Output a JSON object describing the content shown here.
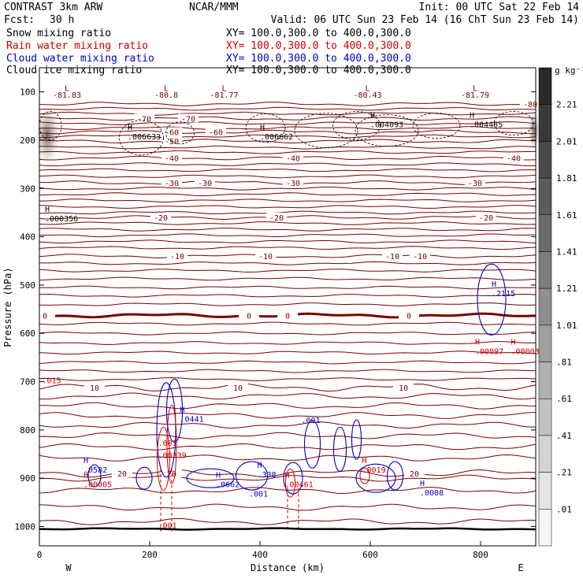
{
  "header": {
    "model": "CONTRAST  3km ARW",
    "org": "NCAR/MMM",
    "init": "Init: 00 UTC Sat 22 Feb 14",
    "fcst_label": "Fcst:",
    "fcst_value": "30 h",
    "valid": "Valid: 06 UTC Sun 23 Feb 14 (16 ChT Sun 23 Feb 14)",
    "fields": [
      {
        "name": "Snow mixing ratio",
        "xy": "XY= 100.0,300.0 to 400.0,300.0",
        "color": "#000000"
      },
      {
        "name": "Rain water mixing ratio",
        "xy": "XY= 100.0,300.0 to 400.0,300.0",
        "color": "#d00000"
      },
      {
        "name": "Cloud water mixing ratio",
        "xy": "XY= 100.0,300.0 to 400.0,300.0",
        "color": "#0000cc"
      },
      {
        "name": "Cloud ice mixing ratio",
        "xy": "XY= 100.0,300.0 to 400.0,300.0",
        "color": "#000000"
      }
    ]
  },
  "chart_data": {
    "type": "contour cross-section",
    "xlabel": "Distance (km)",
    "ylabel": "Pressure (hPa)",
    "xlim": [
      0,
      900
    ],
    "ylim": [
      1040,
      50
    ],
    "x_ticks": [
      0,
      200,
      400,
      600,
      800
    ],
    "y_ticks": [
      100,
      200,
      300,
      400,
      500,
      600,
      700,
      800,
      900,
      1000
    ],
    "x_end_labels": {
      "left": "W",
      "right": "E"
    },
    "colorbar": {
      "unit": "g kg⁻¹",
      "labels": [
        "2.21",
        "2.01",
        "1.81",
        "1.61",
        "1.41",
        "1.21",
        "1.01",
        ".81",
        ".61",
        ".41",
        ".21",
        ".01"
      ]
    },
    "temperature_contours": [
      {
        "label": "-80",
        "p": 125,
        "labels_at": [
          890
        ]
      },
      {
        "label": "-70",
        "p": 155,
        "labels_at": [
          190,
          270
        ]
      },
      {
        "label": "-60",
        "p": 183,
        "labels_at": [
          240,
          320
        ]
      },
      {
        "label": "-50",
        "p": 202,
        "labels_at": [
          240
        ]
      },
      {
        "label": "-40",
        "p": 237,
        "labels_at": [
          240,
          460,
          860
        ]
      },
      {
        "label": "-30",
        "p": 288,
        "labels_at": [
          240,
          300,
          460,
          790
        ]
      },
      {
        "label": "-20",
        "p": 360,
        "labels_at": [
          220,
          430,
          810
        ]
      },
      {
        "label": "-10",
        "p": 440,
        "labels_at": [
          250,
          410,
          640,
          690
        ]
      },
      {
        "label": "0",
        "p": 563,
        "labels_at": [
          10,
          380,
          450,
          670
        ],
        "bold": true
      },
      {
        "label": "10",
        "p": 712,
        "labels_at": [
          100,
          360,
          660
        ]
      },
      {
        "label": "20",
        "p": 890,
        "labels_at": [
          150,
          240,
          680
        ]
      }
    ],
    "extra_contour_pressures": [
      135,
      145,
      165,
      175,
      192,
      215,
      225,
      250,
      262,
      275,
      300,
      312,
      325,
      338,
      350,
      372,
      385,
      397,
      410,
      423,
      455,
      470,
      487,
      505,
      522,
      540,
      580,
      600,
      620,
      640,
      660,
      678,
      695,
      730,
      750,
      770,
      790,
      812,
      835,
      858,
      900,
      925,
      960,
      990
    ],
    "top_lows": [
      {
        "label": "-81.83",
        "x": 50
      },
      {
        "label": "-80.8",
        "x": 230
      },
      {
        "label": "-81.77",
        "x": 335
      },
      {
        "label": "-80.43",
        "x": 595
      },
      {
        "label": "-81.79",
        "x": 790
      }
    ],
    "red_annotations": [
      {
        "mark": "H",
        "value": ".00097",
        "x": 790,
        "p": 640
      },
      {
        "mark": "H",
        "value": ".00003",
        "x": 855,
        "p": 640
      },
      {
        "mark": "",
        "value": ".015",
        "x": 5,
        "p": 700
      },
      {
        "mark": "H",
        "value": ".00005",
        "x": 80,
        "p": 915
      },
      {
        "mark": "",
        "value": ".001",
        "x": 215,
        "p": 830
      },
      {
        "mark": "",
        "value": ".00339",
        "x": 215,
        "p": 855
      },
      {
        "mark": "H",
        "value": ".00461",
        "x": 445,
        "p": 915
      },
      {
        "mark": "H",
        "value": ".0019",
        "x": 585,
        "p": 885
      },
      {
        "mark": "",
        "value": ".001",
        "x": 215,
        "p": 1000
      }
    ],
    "blue_annotations": [
      {
        "mark": "H",
        "value": ".2115",
        "x": 820,
        "p": 520
      },
      {
        "mark": "H",
        "value": ".0441",
        "x": 255,
        "p": 780
      },
      {
        "mark": "",
        "value": ".001",
        "x": 475,
        "p": 782
      },
      {
        "mark": "H",
        "value": ".0582",
        "x": 80,
        "p": 885
      },
      {
        "mark": "H",
        "value": ".0662",
        "x": 320,
        "p": 915
      },
      {
        "mark": "H",
        "value": ".338",
        "x": 395,
        "p": 895
      },
      {
        "mark": "",
        "value": ".001",
        "x": 380,
        "p": 935
      },
      {
        "mark": "H",
        "value": ".0008",
        "x": 690,
        "p": 932
      }
    ],
    "black_annotations": [
      {
        "mark": "H",
        "value": ".004093",
        "x": 600,
        "p": 170
      },
      {
        "mark": "H",
        "value": ".004485",
        "x": 780,
        "p": 170
      },
      {
        "mark": "H",
        "value": ".006633",
        "x": 160,
        "p": 195
      },
      {
        "mark": "H",
        "value": ".006662",
        "x": 400,
        "p": 195
      },
      {
        "mark": "H",
        "value": ".000356",
        "x": 10,
        "p": 365
      }
    ]
  }
}
